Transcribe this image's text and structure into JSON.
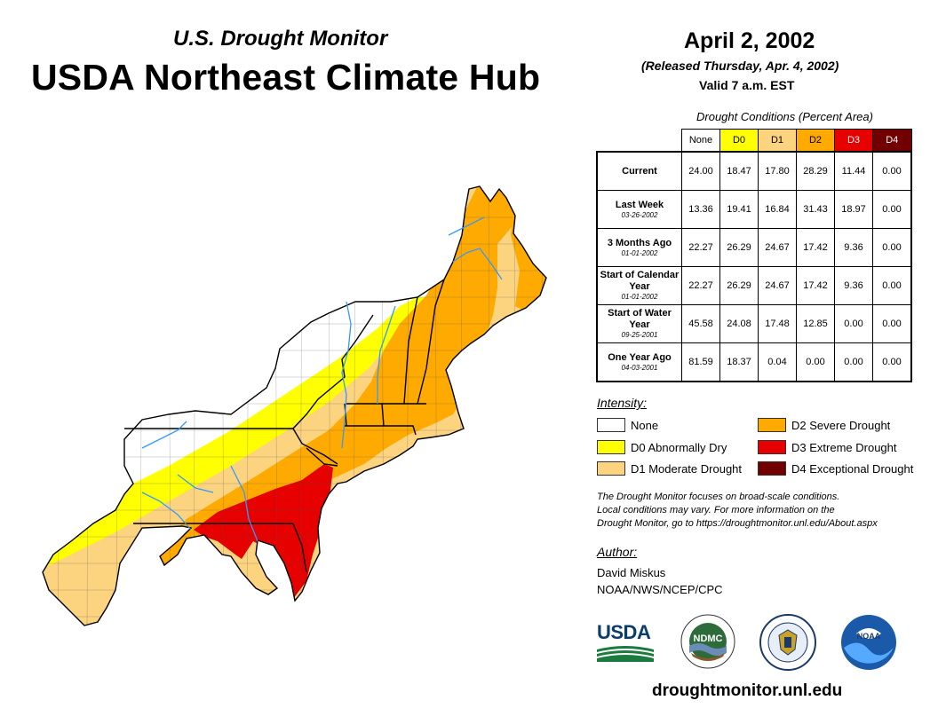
{
  "header": {
    "subtitle": "U.S. Drought Monitor",
    "title": "USDA Northeast Climate Hub"
  },
  "release": {
    "date": "April 2, 2002",
    "released": "(Released Thursday, Apr. 4, 2002)",
    "valid": "Valid 7 a.m. EST"
  },
  "table": {
    "caption": "Drought Conditions (Percent Area)",
    "columns": [
      "None",
      "D0",
      "D1",
      "D2",
      "D3",
      "D4"
    ],
    "column_colors": [
      "#ffffff",
      "#ffff00",
      "#fcd37f",
      "#ffaa00",
      "#e60000",
      "#730000"
    ],
    "rows": [
      {
        "label": "Current",
        "date": "",
        "values": [
          "24.00",
          "18.47",
          "17.80",
          "28.29",
          "11.44",
          "0.00"
        ]
      },
      {
        "label": "Last Week",
        "date": "03-26-2002",
        "values": [
          "13.36",
          "19.41",
          "16.84",
          "31.43",
          "18.97",
          "0.00"
        ]
      },
      {
        "label": "3 Months Ago",
        "date": "01-01-2002",
        "values": [
          "22.27",
          "26.29",
          "24.67",
          "17.42",
          "9.36",
          "0.00"
        ]
      },
      {
        "label": "Start of Calendar Year",
        "date": "01-01-2002",
        "values": [
          "22.27",
          "26.29",
          "24.67",
          "17.42",
          "9.36",
          "0.00"
        ]
      },
      {
        "label": "Start of Water Year",
        "date": "09-25-2001",
        "values": [
          "45.58",
          "24.08",
          "17.48",
          "12.85",
          "0.00",
          "0.00"
        ]
      },
      {
        "label": "One Year Ago",
        "date": "04-03-2001",
        "values": [
          "81.59",
          "18.37",
          "0.04",
          "0.00",
          "0.00",
          "0.00"
        ]
      }
    ]
  },
  "legend": {
    "title": "Intensity:",
    "items": [
      {
        "label": "None",
        "color": "#ffffff"
      },
      {
        "label": "D0 Abnormally Dry",
        "color": "#ffff00"
      },
      {
        "label": "D1 Moderate Drought",
        "color": "#fcd37f"
      },
      {
        "label": "D2 Severe Drought",
        "color": "#ffaa00"
      },
      {
        "label": "D3 Extreme Drought",
        "color": "#e60000"
      },
      {
        "label": "D4 Exceptional Drought",
        "color": "#730000"
      }
    ]
  },
  "note": {
    "line1": "The Drought Monitor focuses on broad-scale conditions.",
    "line2": "Local conditions may vary. For more information on the",
    "line3": "Drought Monitor, go to https://droughtmonitor.unl.edu/About.aspx"
  },
  "author": {
    "title": "Author:",
    "name": "David Miskus",
    "org": "NOAA/NWS/NCEP/CPC"
  },
  "logos": {
    "usda": "USDA",
    "ndmc": "NDMC",
    "noaa": "NOAA"
  },
  "footer": {
    "url": "droughtmonitor.unl.edu"
  },
  "map": {
    "name": "Northeast U.S. drought map",
    "colors": {
      "none": "#ffffff",
      "d0": "#ffff00",
      "d1": "#fcd37f",
      "d2": "#ffaa00",
      "d3": "#e60000",
      "water": "#3399ff",
      "border": "#000000"
    }
  }
}
